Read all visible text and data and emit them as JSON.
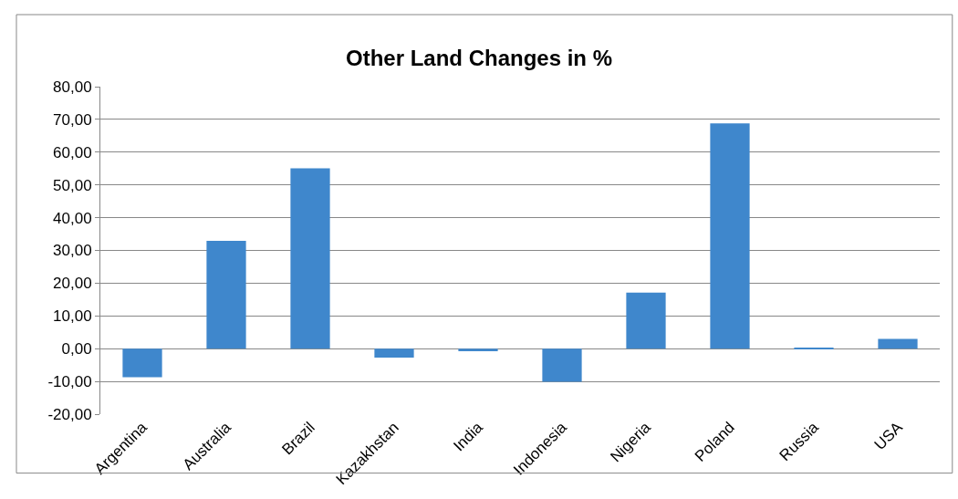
{
  "chart_data": {
    "type": "bar",
    "title": "Other Land Changes in %",
    "categories": [
      "Argentina",
      "Australia",
      "Brazil",
      "Kazakhstan",
      "India",
      "Indonesia",
      "Nigeria",
      "Poland",
      "Russia",
      "USA"
    ],
    "values": [
      -8.7,
      32.9,
      55.1,
      -2.7,
      -0.8,
      -10.1,
      17.1,
      68.8,
      0.2,
      3.0
    ],
    "color": "#3f87cc",
    "ylim": [
      -20,
      80
    ],
    "yticks": [
      {
        "value": -20,
        "label": "-20,00"
      },
      {
        "value": -10,
        "label": "-10,00"
      },
      {
        "value": 0,
        "label": "0,00"
      },
      {
        "value": 10,
        "label": "10,00"
      },
      {
        "value": 20,
        "label": "20,00"
      },
      {
        "value": 30,
        "label": "30,00"
      },
      {
        "value": 40,
        "label": "40,00"
      },
      {
        "value": 50,
        "label": "50,00"
      },
      {
        "value": 60,
        "label": "60,00"
      },
      {
        "value": 70,
        "label": "70,00"
      },
      {
        "value": 80,
        "label": "80,00"
      }
    ],
    "grid": "y"
  }
}
